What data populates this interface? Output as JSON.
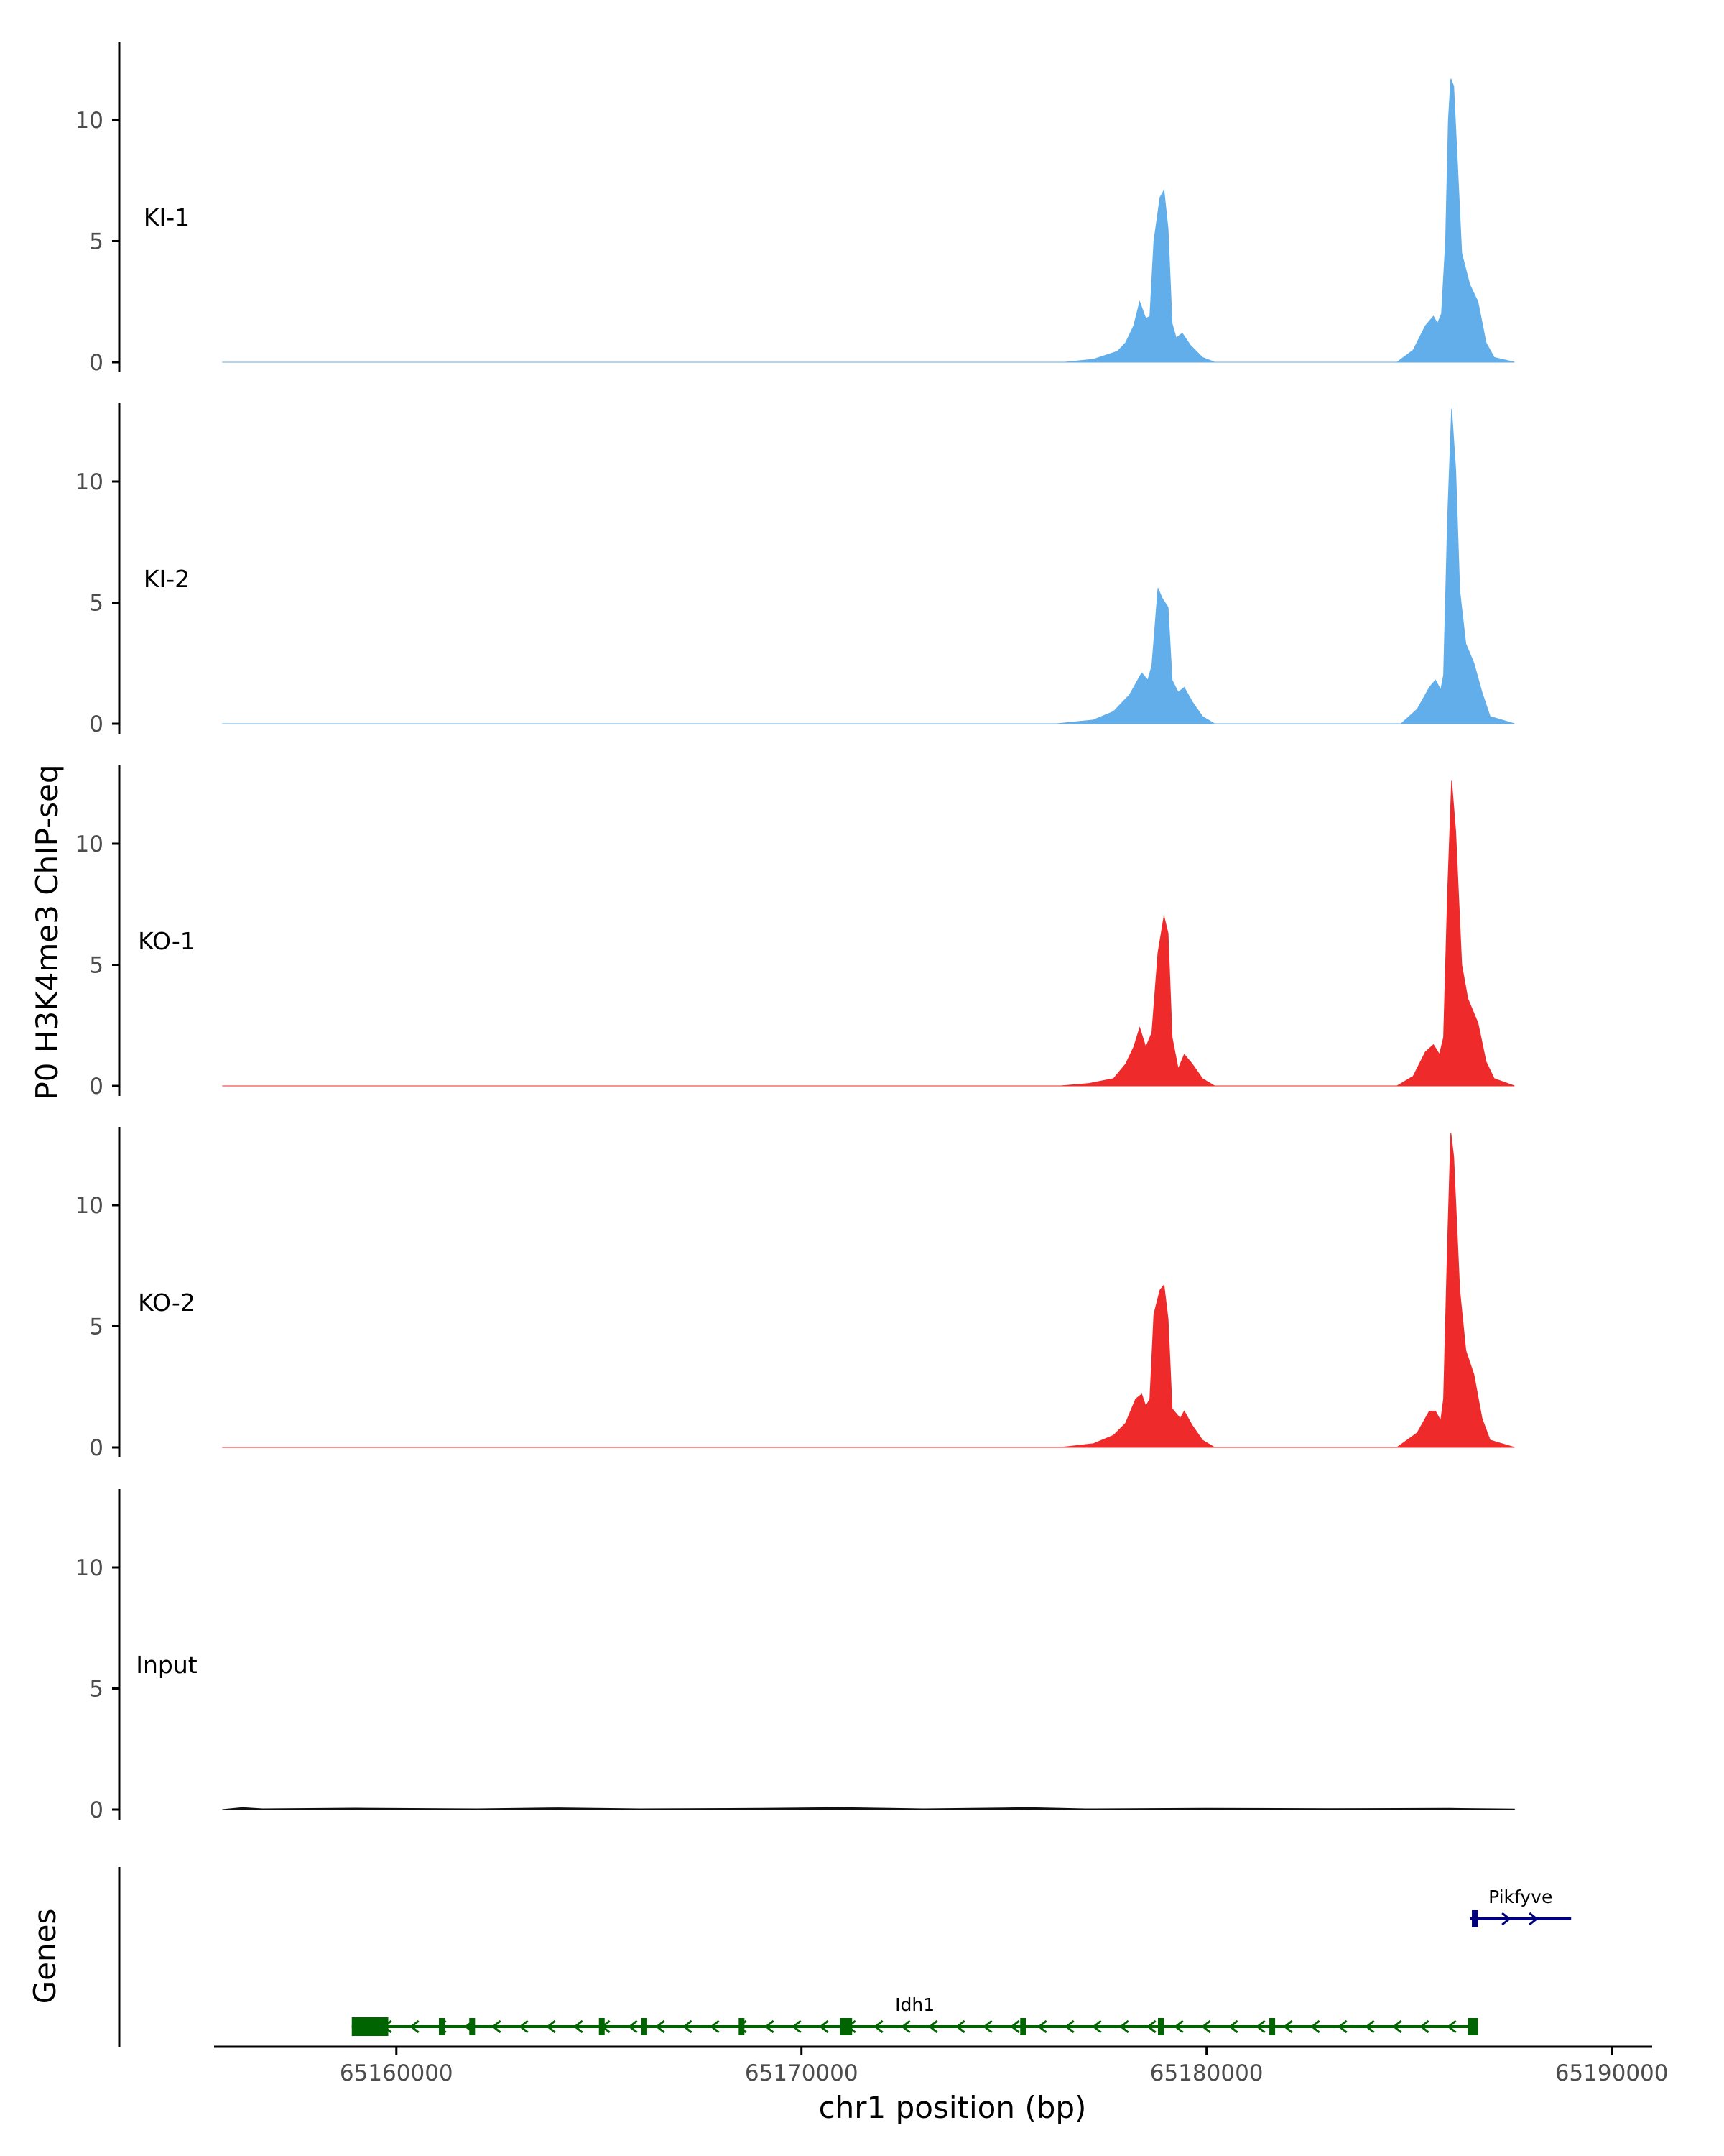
{
  "chart_data": {
    "type": "area",
    "title": "",
    "ylabel": "P0 H3K4me3 ChIP-seq",
    "xlabel": "chr1 position (bp)",
    "xlim": [
      65155500,
      65191000
    ],
    "ylim": [
      0,
      13.5
    ],
    "yticks": [
      0,
      5,
      10
    ],
    "xticks": [
      {
        "value": 65160000,
        "label": "65160000"
      },
      {
        "value": 65170000,
        "label": "65170000"
      },
      {
        "value": 65180000,
        "label": "65180000"
      },
      {
        "value": 65190000,
        "label": "65190000"
      }
    ],
    "tracks": [
      {
        "name": "KI-1",
        "color": "#62aeea",
        "points": [
          [
            65155700,
            0
          ],
          [
            65176500,
            0
          ],
          [
            65177200,
            0.12
          ],
          [
            65177800,
            0.45
          ],
          [
            65178000,
            0.8
          ],
          [
            65178200,
            1.5
          ],
          [
            65178350,
            2.5
          ],
          [
            65178500,
            1.8
          ],
          [
            65178600,
            1.9
          ],
          [
            65178700,
            5.0
          ],
          [
            65178850,
            6.8
          ],
          [
            65178950,
            7.1
          ],
          [
            65179050,
            5.5
          ],
          [
            65179150,
            1.6
          ],
          [
            65179250,
            1.0
          ],
          [
            65179400,
            1.2
          ],
          [
            65179600,
            0.7
          ],
          [
            65179900,
            0.2
          ],
          [
            65180200,
            0
          ],
          [
            65184700,
            0
          ],
          [
            65185100,
            0.5
          ],
          [
            65185400,
            1.5
          ],
          [
            65185600,
            1.9
          ],
          [
            65185700,
            1.6
          ],
          [
            65185800,
            2.0
          ],
          [
            65185900,
            5.0
          ],
          [
            65185970,
            10.0
          ],
          [
            65186030,
            11.7
          ],
          [
            65186100,
            11.4
          ],
          [
            65186200,
            8.0
          ],
          [
            65186300,
            4.5
          ],
          [
            65186500,
            3.2
          ],
          [
            65186700,
            2.5
          ],
          [
            65186900,
            0.8
          ],
          [
            65187100,
            0.2
          ],
          [
            65187600,
            0
          ]
        ]
      },
      {
        "name": "KI-2",
        "color": "#62aeea",
        "points": [
          [
            65155700,
            0
          ],
          [
            65176300,
            0
          ],
          [
            65177200,
            0.15
          ],
          [
            65177700,
            0.5
          ],
          [
            65178100,
            1.2
          ],
          [
            65178400,
            2.1
          ],
          [
            65178550,
            1.8
          ],
          [
            65178650,
            2.4
          ],
          [
            65178800,
            5.6
          ],
          [
            65178900,
            5.2
          ],
          [
            65179050,
            4.8
          ],
          [
            65179150,
            1.8
          ],
          [
            65179300,
            1.3
          ],
          [
            65179450,
            1.5
          ],
          [
            65179650,
            0.9
          ],
          [
            65179900,
            0.3
          ],
          [
            65180200,
            0
          ],
          [
            65184800,
            0
          ],
          [
            65185200,
            0.6
          ],
          [
            65185500,
            1.5
          ],
          [
            65185650,
            1.8
          ],
          [
            65185780,
            1.4
          ],
          [
            65185850,
            2.0
          ],
          [
            65185950,
            8.5
          ],
          [
            65186050,
            13.0
          ],
          [
            65186150,
            10.5
          ],
          [
            65186250,
            5.5
          ],
          [
            65186400,
            3.3
          ],
          [
            65186600,
            2.5
          ],
          [
            65186800,
            1.3
          ],
          [
            65187000,
            0.3
          ],
          [
            65187600,
            0
          ]
        ]
      },
      {
        "name": "KO-1",
        "color": "#ee2a2a",
        "points": [
          [
            65155700,
            0
          ],
          [
            65176400,
            0
          ],
          [
            65177100,
            0.1
          ],
          [
            65177700,
            0.3
          ],
          [
            65178000,
            0.9
          ],
          [
            65178200,
            1.6
          ],
          [
            65178350,
            2.4
          ],
          [
            65178500,
            1.6
          ],
          [
            65178650,
            2.2
          ],
          [
            65178800,
            5.5
          ],
          [
            65178950,
            7.0
          ],
          [
            65179050,
            6.3
          ],
          [
            65179150,
            2.0
          ],
          [
            65179300,
            0.7
          ],
          [
            65179450,
            1.3
          ],
          [
            65179650,
            0.9
          ],
          [
            65179900,
            0.3
          ],
          [
            65180200,
            0
          ],
          [
            65184700,
            0
          ],
          [
            65185100,
            0.4
          ],
          [
            65185400,
            1.4
          ],
          [
            65185600,
            1.7
          ],
          [
            65185750,
            1.3
          ],
          [
            65185850,
            2.0
          ],
          [
            65185950,
            8.0
          ],
          [
            65186050,
            12.6
          ],
          [
            65186150,
            10.5
          ],
          [
            65186300,
            5.0
          ],
          [
            65186450,
            3.6
          ],
          [
            65186700,
            2.6
          ],
          [
            65186900,
            1.0
          ],
          [
            65187100,
            0.3
          ],
          [
            65187600,
            0
          ]
        ]
      },
      {
        "name": "KO-2",
        "color": "#ee2a2a",
        "points": [
          [
            65155700,
            0
          ],
          [
            65176400,
            0
          ],
          [
            65177200,
            0.15
          ],
          [
            65177700,
            0.5
          ],
          [
            65178000,
            1.0
          ],
          [
            65178250,
            2.0
          ],
          [
            65178400,
            2.2
          ],
          [
            65178500,
            1.7
          ],
          [
            65178600,
            2.0
          ],
          [
            65178700,
            5.5
          ],
          [
            65178850,
            6.5
          ],
          [
            65178950,
            6.7
          ],
          [
            65179050,
            5.3
          ],
          [
            65179150,
            1.6
          ],
          [
            65179350,
            1.2
          ],
          [
            65179450,
            1.5
          ],
          [
            65179650,
            0.9
          ],
          [
            65179900,
            0.3
          ],
          [
            65180200,
            0
          ],
          [
            65184700,
            0
          ],
          [
            65185200,
            0.6
          ],
          [
            65185500,
            1.5
          ],
          [
            65185650,
            1.5
          ],
          [
            65185780,
            1.1
          ],
          [
            65185850,
            2.0
          ],
          [
            65185950,
            8.5
          ],
          [
            65186030,
            13.0
          ],
          [
            65186100,
            12.0
          ],
          [
            65186250,
            6.5
          ],
          [
            65186400,
            4.0
          ],
          [
            65186600,
            3.0
          ],
          [
            65186800,
            1.2
          ],
          [
            65187000,
            0.3
          ],
          [
            65187600,
            0
          ]
        ]
      },
      {
        "name": "Input",
        "color": "#111111",
        "points": [
          [
            65155700,
            0
          ],
          [
            65156200,
            0.08
          ],
          [
            65156700,
            0.03
          ],
          [
            65159000,
            0.06
          ],
          [
            65162000,
            0.03
          ],
          [
            65164000,
            0.07
          ],
          [
            65166000,
            0.03
          ],
          [
            65169000,
            0.05
          ],
          [
            65171000,
            0.08
          ],
          [
            65173000,
            0.03
          ],
          [
            65175600,
            0.08
          ],
          [
            65177000,
            0.03
          ],
          [
            65180000,
            0.05
          ],
          [
            65183000,
            0.04
          ],
          [
            65186000,
            0.05
          ],
          [
            65187600,
            0.02
          ],
          [
            65187601,
            0
          ]
        ]
      }
    ],
    "genes_track_label": "Genes",
    "genes": [
      {
        "name": "Idh1",
        "strand": "-",
        "color": "#006400",
        "start": 65158900,
        "end": 65186700,
        "exons": [
          [
            65158900,
            65159800
          ],
          [
            65161050,
            65161150
          ],
          [
            65161800,
            65161900
          ],
          [
            65165000,
            65165100
          ],
          [
            65166050,
            65166150
          ],
          [
            65168450,
            65168550
          ],
          [
            65170950,
            65171250
          ],
          [
            65175400,
            65175500
          ],
          [
            65178800,
            65178950
          ],
          [
            65181550,
            65181650
          ],
          [
            65186450,
            65186700
          ]
        ]
      },
      {
        "name": "Pikfyve",
        "strand": "+",
        "color": "#00007f",
        "start": 65186500,
        "end": 65189000,
        "exons": [
          [
            65186550,
            65186700
          ]
        ]
      }
    ]
  }
}
